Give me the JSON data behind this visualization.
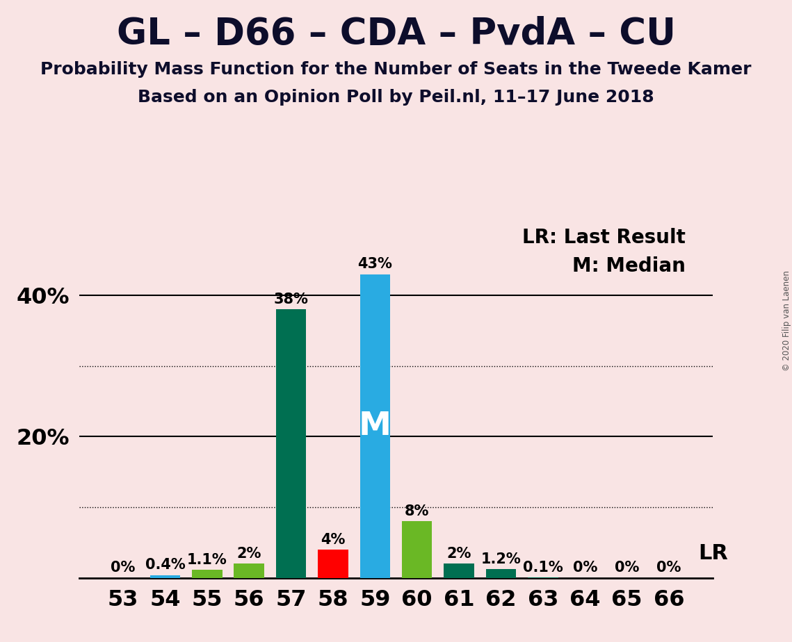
{
  "title": "GL – D66 – CDA – PvdA – CU",
  "subtitle1": "Probability Mass Function for the Number of Seats in the Tweede Kamer",
  "subtitle2": "Based on an Opinion Poll by Peil.nl, 11–17 June 2018",
  "copyright": "© 2020 Filip van Laenen",
  "categories": [
    53,
    54,
    55,
    56,
    57,
    58,
    59,
    60,
    61,
    62,
    63,
    64,
    65,
    66
  ],
  "values": [
    0.0,
    0.4,
    1.1,
    2.0,
    38.0,
    4.0,
    43.0,
    8.0,
    2.0,
    1.2,
    0.1,
    0.0,
    0.0,
    0.0
  ],
  "labels": [
    "0%",
    "0.4%",
    "1.1%",
    "2%",
    "38%",
    "4%",
    "43%",
    "8%",
    "2%",
    "1.2%",
    "0.1%",
    "0%",
    "0%",
    "0%"
  ],
  "bar_colors": [
    "#29ABE2",
    "#29ABE2",
    "#6AB825",
    "#6AB825",
    "#006F51",
    "#FF0000",
    "#29ABE2",
    "#6AB825",
    "#006F51",
    "#006F51",
    "#006F51",
    "#006F51",
    "#006F51",
    "#006F51"
  ],
  "median_bar_idx": 6,
  "median_label": "M",
  "lr_label": "LR",
  "legend_lr": "LR: Last Result",
  "legend_m": "M: Median",
  "background_color": "#F9E4E4",
  "ylim": [
    0,
    50
  ],
  "solid_gridlines": [
    20,
    40
  ],
  "dotted_gridlines": [
    10,
    30
  ],
  "title_fontsize": 38,
  "subtitle_fontsize": 18,
  "label_fontsize": 15,
  "tick_fontsize": 23,
  "legend_fontsize": 20,
  "bar_width": 0.72
}
